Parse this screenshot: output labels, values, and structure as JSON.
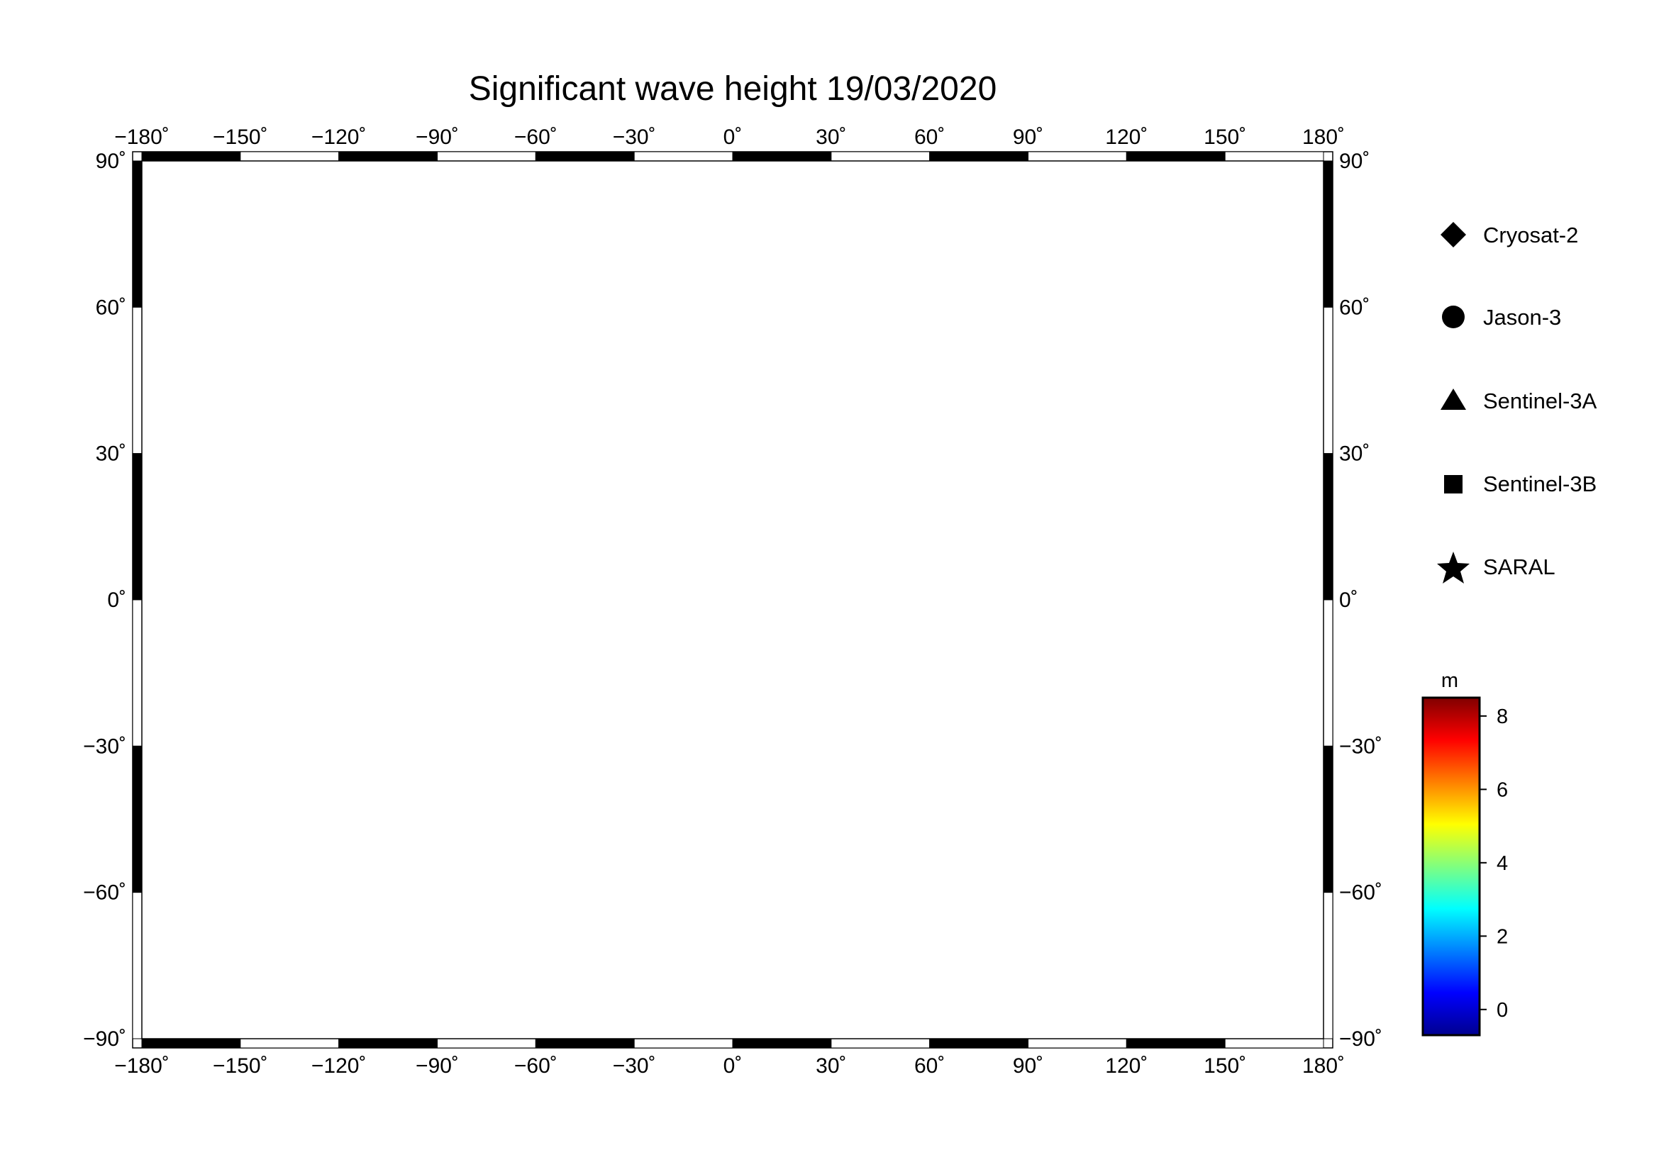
{
  "title": "Significant wave height 19/03/2020",
  "map": {
    "projection": "equirectangular",
    "lon_range": [
      -180,
      180
    ],
    "lat_range": [
      -90,
      90
    ],
    "lon_ticks": [
      {
        "value": -180,
        "label": "−180˚"
      },
      {
        "value": -150,
        "label": "−150˚"
      },
      {
        "value": -120,
        "label": "−120˚"
      },
      {
        "value": -90,
        "label": "−90˚"
      },
      {
        "value": -60,
        "label": "−60˚"
      },
      {
        "value": -30,
        "label": "−30˚"
      },
      {
        "value": 0,
        "label": "0˚"
      },
      {
        "value": 30,
        "label": "30˚"
      },
      {
        "value": 60,
        "label": "60˚"
      },
      {
        "value": 90,
        "label": "90˚"
      },
      {
        "value": 120,
        "label": "120˚"
      },
      {
        "value": 150,
        "label": "150˚"
      },
      {
        "value": 180,
        "label": "180˚"
      }
    ],
    "lat_ticks": [
      {
        "value": 90,
        "label": "90˚"
      },
      {
        "value": 60,
        "label": "60˚"
      },
      {
        "value": 30,
        "label": "30˚"
      },
      {
        "value": 0,
        "label": "0˚"
      },
      {
        "value": -30,
        "label": "−30˚"
      },
      {
        "value": -60,
        "label": "−60˚"
      },
      {
        "value": -90,
        "label": "−90˚"
      }
    ],
    "grid": true,
    "land_color": "#bebebe",
    "ocean_color": "#ffffff"
  },
  "legend": [
    {
      "name": "Cryosat-2",
      "symbol": "diamond"
    },
    {
      "name": "Jason-3",
      "symbol": "circle"
    },
    {
      "name": "Sentinel-3A",
      "symbol": "triangle"
    },
    {
      "name": "Sentinel-3B",
      "symbol": "square"
    },
    {
      "name": "SARAL",
      "symbol": "star"
    }
  ],
  "colorbar": {
    "unit": "m",
    "min": -0.7,
    "max": 8.5,
    "ticks": [
      0,
      2,
      4,
      6,
      8
    ],
    "colormap": "jet"
  }
}
